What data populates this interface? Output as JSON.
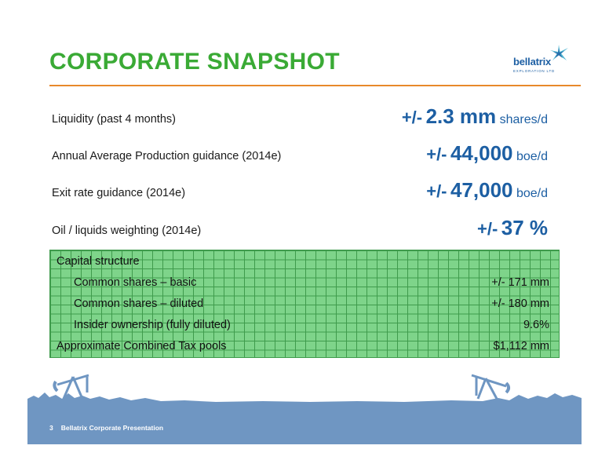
{
  "slide": {
    "title": "CORPORATE SNAPSHOT",
    "page_number": "3",
    "footer": "Bellatrix Corporate Presentation"
  },
  "logo": {
    "name": "bellatrix",
    "tagline": "EXPLORATION LTD",
    "brand_color": "#1d5fa3",
    "star_color": "#2fa8c8"
  },
  "colors": {
    "title_green": "#3aaa35",
    "rule_orange": "#e8892b",
    "value_blue": "#1d5fa3",
    "grid_fill": "#7ed48a",
    "grid_line": "#3f9b4c",
    "footer_blue": "#6f96c2"
  },
  "metrics": [
    {
      "label": "Liquidity (past 4 months)",
      "prefix": "+/-",
      "number": "2.3 mm",
      "unit": "shares/d"
    },
    {
      "label": "Annual Average Production guidance (2014e)",
      "prefix": "+/-",
      "number": "44,000",
      "unit": "boe/d"
    },
    {
      "label": "Exit rate guidance (2014e)",
      "prefix": "+/-",
      "number": "47,000",
      "unit": "boe/d"
    },
    {
      "label": "Oil / liquids weighting (2014e)",
      "prefix": "+/-",
      "number": "37 %",
      "unit": ""
    }
  ],
  "capital": {
    "heading": "Capital structure",
    "rows": [
      {
        "label": "Common shares – basic",
        "value": "+/- 171 mm"
      },
      {
        "label": "Common shares – diluted",
        "value": "+/- 180 mm"
      },
      {
        "label": "Insider ownership (fully diluted)",
        "value": "9.6%"
      }
    ],
    "tax_label": "Approximate Combined Tax pools",
    "tax_value": "$1,112 mm"
  }
}
